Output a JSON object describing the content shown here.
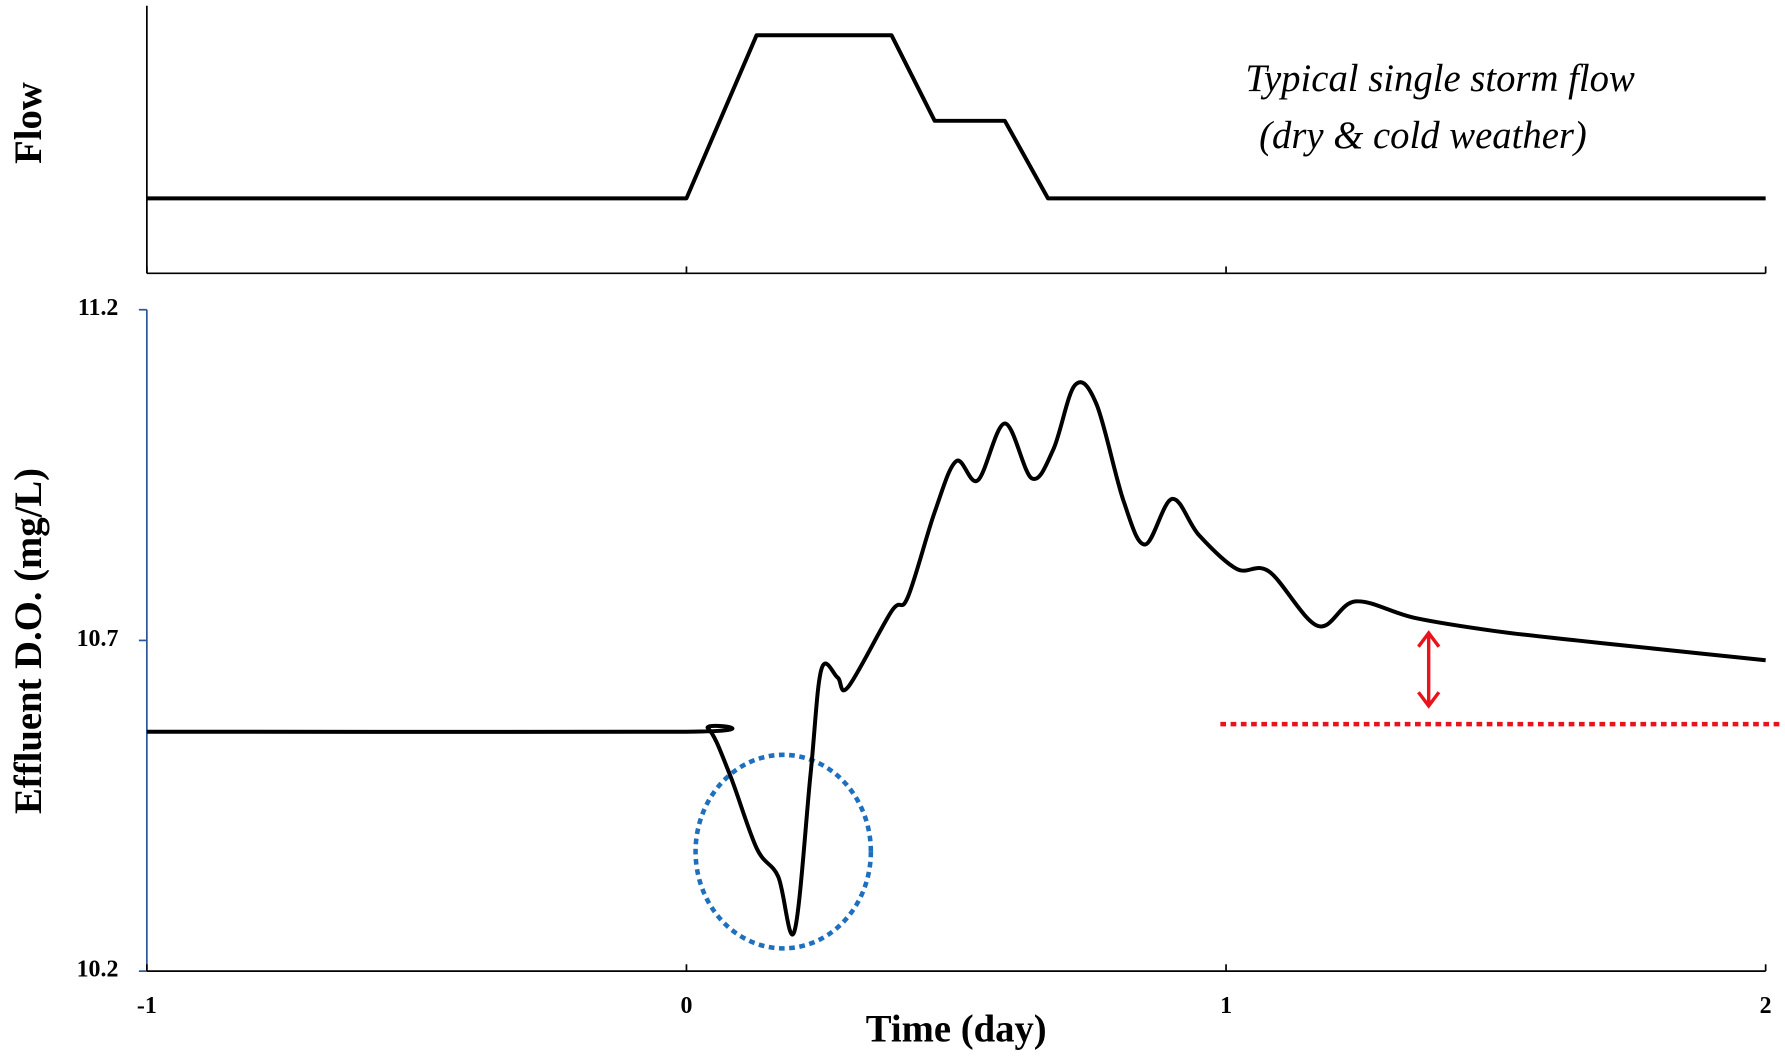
{
  "chart_data": [
    {
      "type": "line",
      "ylabel": "Flow",
      "annotations": [
        "Typical single storm flow",
        "(dry & cold weather)"
      ],
      "xlim": [
        -1,
        2
      ],
      "xticks": [
        -1,
        0,
        1,
        2
      ],
      "ylim": [
        0,
        1
      ],
      "series": [
        {
          "name": "Flow",
          "color": "#000000",
          "x": [
            -1,
            0,
            0.13,
            0.38,
            0.46,
            0.59,
            0.67,
            2
          ],
          "values": [
            0.28,
            0.28,
            0.89,
            0.89,
            0.57,
            0.57,
            0.28,
            0.28
          ]
        }
      ]
    },
    {
      "type": "line",
      "ylabel": "Effluent D.O. (mg/L)",
      "xlabel": "Time (day)",
      "xlim": [
        -1,
        2
      ],
      "xticks": [
        -1,
        0,
        1,
        2
      ],
      "ylim": [
        10.2,
        11.2
      ],
      "yticks": [
        10.2,
        10.7,
        11.2
      ],
      "axis_color": "#2e5597",
      "series": [
        {
          "name": "Effluent D.O.",
          "color": "#000000",
          "x": [
            -1,
            0,
            0.04,
            0.08,
            0.13,
            0.17,
            0.2,
            0.23,
            0.25,
            0.28,
            0.3,
            0.38,
            0.41,
            0.46,
            0.5,
            0.54,
            0.59,
            0.64,
            0.68,
            0.72,
            0.76,
            0.81,
            0.85,
            0.9,
            0.95,
            1.02,
            1.08,
            1.17,
            1.24,
            1.35,
            1.5,
            1.65,
            1.8,
            2.0
          ],
          "values": [
            10.562,
            10.562,
            10.567,
            10.498,
            10.386,
            10.343,
            10.26,
            10.498,
            10.656,
            10.644,
            10.63,
            10.744,
            10.765,
            10.894,
            10.971,
            10.942,
            11.028,
            10.945,
            10.989,
            11.086,
            11.057,
            10.911,
            10.845,
            10.914,
            10.859,
            10.808,
            10.804,
            10.722,
            10.759,
            10.734,
            10.714,
            10.7,
            10.687,
            10.67
          ]
        }
      ]
    }
  ]
}
